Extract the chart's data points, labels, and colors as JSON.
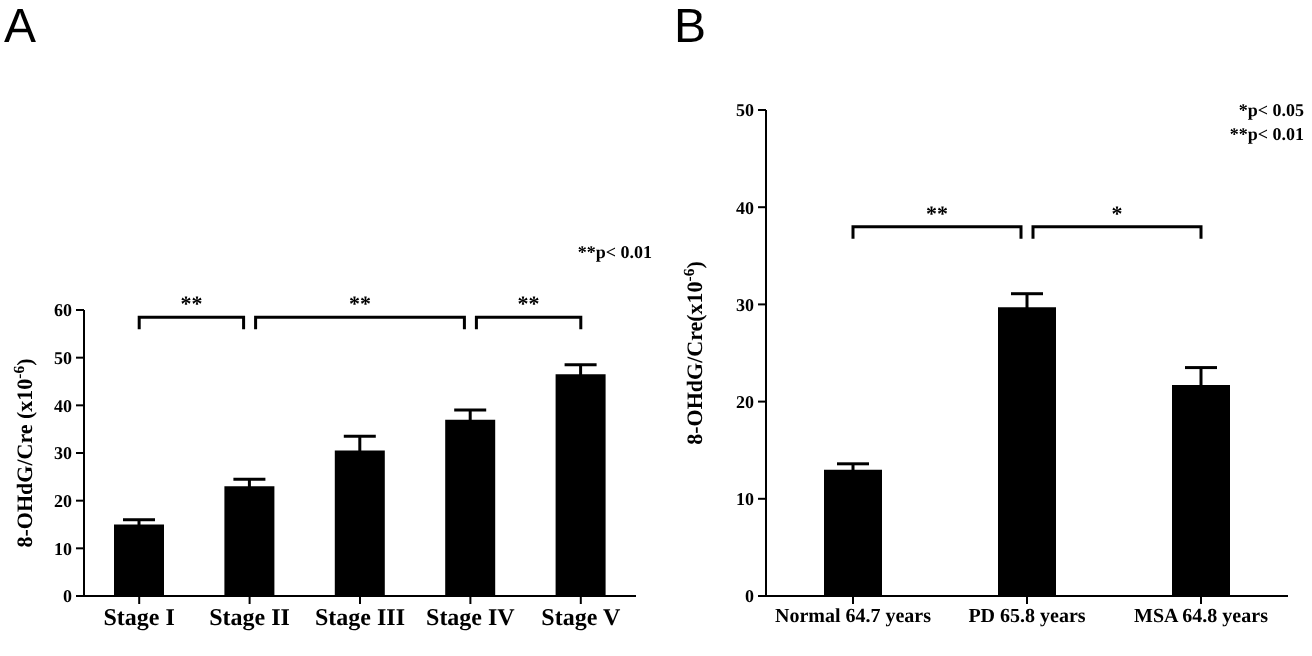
{
  "chart_data": [
    {
      "type": "bar",
      "title": "A",
      "ylabel": "8-OHdG/Cre (x10$^{-6}$)",
      "categories": [
        "Stage I",
        "Stage II",
        "Stage III",
        "Stage IV",
        "Stage V"
      ],
      "values": [
        15,
        23,
        30.5,
        37,
        46.5
      ],
      "errors": [
        1,
        1.5,
        3,
        2,
        2
      ],
      "color": "#000000",
      "ylim": [
        0,
        60
      ],
      "yticks": [
        0,
        10,
        20,
        30,
        40,
        50,
        60
      ],
      "grid": false,
      "legend": false,
      "annotations": [
        "**",
        "**",
        "**",
        "**p< 0.01"
      ]
    },
    {
      "type": "bar",
      "title": "B",
      "ylabel": "8-OHdG/Cre(x10$^{-6}$)",
      "categories": [
        "Normal 64.7 years",
        "PD 65.8 years",
        "MSA 64.8 years"
      ],
      "values": [
        13,
        29.7,
        21.7
      ],
      "errors": [
        0.6,
        1.4,
        1.8
      ],
      "color": "#000000",
      "ylim": [
        0,
        50
      ],
      "yticks": [
        0,
        10,
        20,
        30,
        40,
        50
      ],
      "grid": false,
      "legend": false,
      "annotations": [
        "**",
        "*",
        "*p< 0.05",
        "**p< 0.01"
      ]
    }
  ]
}
